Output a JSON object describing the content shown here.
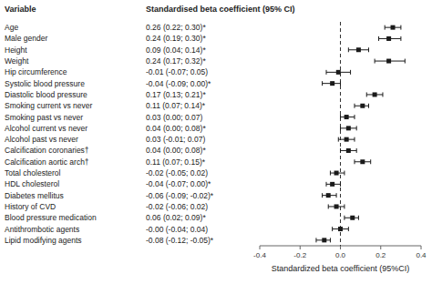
{
  "chart_data": {
    "type": "forest",
    "xlabel": "Standardized beta coefficient (95%CI)",
    "column_headers": [
      "Variable",
      "Standardised beta coefficient (95% CI)"
    ],
    "categories": [
      "Age",
      "Male gender",
      "Height",
      "Weight",
      "Hip circumference",
      "Systolic blood pressure",
      "Diastolic blood pressure",
      "Smoking current vs never",
      "Smoking past vs never",
      "Alcohol current vs never",
      "Alcohol past vs never",
      "Calcification coronaries†",
      "Calcification aortic arch†",
      "Total cholesterol",
      "HDL cholesterol",
      "Diabetes mellitus",
      "History of CVD",
      "Blood pressure medication",
      "Antithrombotic agents",
      "Lipid modifying agents"
    ],
    "values": [
      0.26,
      0.24,
      0.09,
      0.24,
      -0.01,
      -0.04,
      0.17,
      0.11,
      0.03,
      0.04,
      0.03,
      0.04,
      0.11,
      -0.02,
      -0.04,
      -0.06,
      -0.02,
      0.06,
      0.0,
      -0.08
    ],
    "ci_lower": [
      0.22,
      0.19,
      0.04,
      0.17,
      -0.07,
      -0.09,
      0.13,
      0.07,
      0.0,
      0.0,
      -0.01,
      0.0,
      0.07,
      -0.05,
      -0.07,
      -0.09,
      -0.06,
      0.02,
      -0.04,
      -0.12
    ],
    "ci_upper": [
      0.3,
      0.3,
      0.14,
      0.32,
      0.05,
      0.0,
      0.21,
      0.14,
      0.07,
      0.08,
      0.07,
      0.08,
      0.15,
      0.02,
      0.0,
      -0.02,
      0.02,
      0.09,
      0.04,
      -0.05
    ],
    "value_labels": [
      "0.26 (0.22; 0.30)*",
      "0.24 (0.19; 0.30)*",
      "0.09 (0.04; 0.14)*",
      "0.24 (0.17; 0.32)*",
      "-0.01 (-0.07; 0.05)",
      "-0.04 (-0.09; 0.00)*",
      "0.17 (0.13; 0.21)*",
      "0.11 (0.07; 0.14)*",
      "0.03 (0.00; 0.07)",
      "0.04 (0.00; 0.08)*",
      "0.03 (-0.01; 0.07)",
      "0.04 (0.00; 0.08)*",
      "0.11 (0.07; 0.15)*",
      "-0.02 (-0.05; 0.02)",
      "-0.04 (-0.07; 0.00)*",
      "-0.06 (-0.09; -0.02)*",
      "-0.02 (-0.06; 0.02)",
      "0.06 (0.02; 0.09)*",
      "-0.00 (-0.04; 0.04)",
      "-0.08 (-0.12; -0.05)*"
    ],
    "reference_line": 0,
    "xlim": [
      -0.4,
      0.4
    ],
    "xticks": [
      -0.4,
      -0.2,
      {
        "value": 0.0,
        "label": "0.0"
      },
      0.2,
      0.4
    ],
    "color": "#1a1a1a",
    "grid": false
  }
}
